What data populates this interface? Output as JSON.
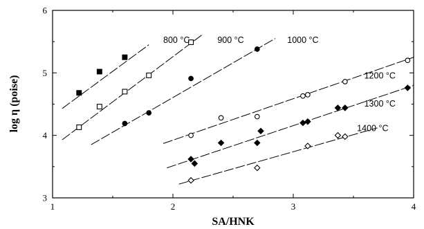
{
  "chart_data": {
    "type": "scatter",
    "xlabel": "SA/HNK",
    "ylabel": "log η (poise)",
    "xlim": [
      1,
      4
    ],
    "ylim": [
      3,
      6
    ],
    "xticks": [
      "1",
      "2",
      "3",
      "4"
    ],
    "yticks": [
      "3",
      "4",
      "5",
      "6"
    ],
    "grid": false,
    "legend": "none",
    "series": [
      {
        "name": "800 °C",
        "marker": "filled-square",
        "points": [
          [
            1.22,
            4.68
          ],
          [
            1.39,
            5.02
          ],
          [
            1.6,
            5.25
          ]
        ],
        "fit": [
          [
            1.08,
            4.43
          ],
          [
            1.8,
            5.45
          ]
        ]
      },
      {
        "name": "900 °C",
        "marker": "open-square",
        "points": [
          [
            1.22,
            4.13
          ],
          [
            1.39,
            4.46
          ],
          [
            1.6,
            4.7
          ],
          [
            1.8,
            4.96
          ],
          [
            2.15,
            5.49
          ]
        ],
        "fit": [
          [
            1.08,
            3.93
          ],
          [
            2.25,
            5.62
          ]
        ]
      },
      {
        "name": "1000 °C",
        "marker": "filled-circle",
        "points": [
          [
            1.6,
            4.19
          ],
          [
            1.8,
            4.36
          ],
          [
            2.15,
            4.91
          ],
          [
            2.7,
            5.38
          ]
        ],
        "fit": [
          [
            1.32,
            3.85
          ],
          [
            2.85,
            5.55
          ]
        ]
      },
      {
        "name": "1200 °C",
        "marker": "open-circle",
        "points": [
          [
            2.15,
            4.0
          ],
          [
            2.4,
            4.28
          ],
          [
            2.7,
            4.3
          ],
          [
            3.08,
            4.63
          ],
          [
            3.12,
            4.65
          ],
          [
            3.43,
            4.86
          ],
          [
            3.95,
            5.2
          ]
        ],
        "fit": [
          [
            1.92,
            3.87
          ],
          [
            4.0,
            5.25
          ]
        ]
      },
      {
        "name": "1300 °C",
        "marker": "filled-diamond",
        "points": [
          [
            2.15,
            3.62
          ],
          [
            2.18,
            3.55
          ],
          [
            2.4,
            3.88
          ],
          [
            2.7,
            3.88
          ],
          [
            2.73,
            4.07
          ],
          [
            3.08,
            4.2
          ],
          [
            3.12,
            4.22
          ],
          [
            3.37,
            4.44
          ],
          [
            3.43,
            4.44
          ],
          [
            3.95,
            4.76
          ]
        ],
        "fit": [
          [
            1.95,
            3.48
          ],
          [
            4.0,
            4.8
          ]
        ]
      },
      {
        "name": "1400 °C",
        "marker": "open-diamond",
        "points": [
          [
            2.15,
            3.28
          ],
          [
            2.7,
            3.48
          ],
          [
            3.12,
            3.83
          ],
          [
            3.37,
            4.0
          ],
          [
            3.43,
            3.98
          ]
        ],
        "fit": [
          [
            2.05,
            3.22
          ],
          [
            3.7,
            4.12
          ]
        ]
      }
    ],
    "series_labels": [
      {
        "text": "800 °C",
        "x": 2.03,
        "y": 5.48
      },
      {
        "text": "900 °C",
        "x": 2.48,
        "y": 5.48
      },
      {
        "text": "1000 °C",
        "x": 3.08,
        "y": 5.48
      },
      {
        "text": "1200 °C",
        "x": 3.72,
        "y": 4.91
      },
      {
        "text": "1300 °C",
        "x": 3.72,
        "y": 4.46
      },
      {
        "text": "1400 °C",
        "x": 3.66,
        "y": 4.07
      }
    ]
  }
}
